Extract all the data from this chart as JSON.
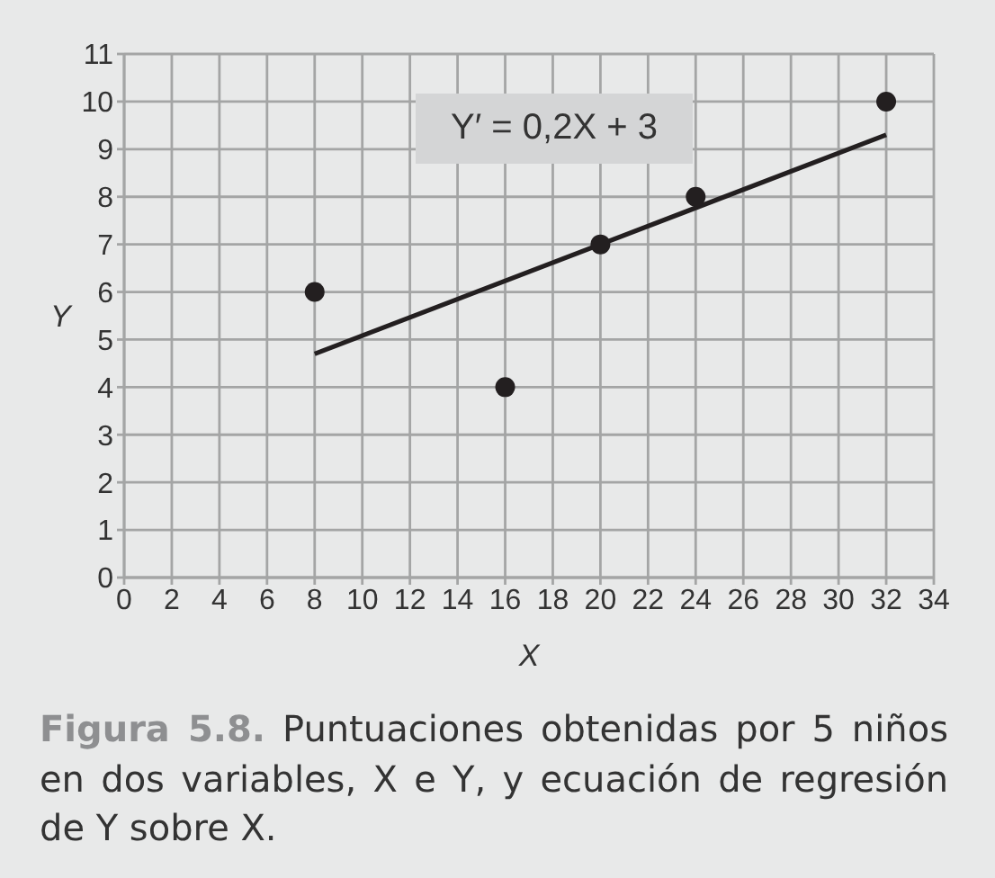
{
  "chart_data": {
    "type": "scatter",
    "xlabel": "X",
    "ylabel": "Y",
    "xlim": [
      0,
      34
    ],
    "xticks": [
      0,
      2,
      4,
      6,
      8,
      10,
      12,
      14,
      16,
      18,
      20,
      22,
      24,
      26,
      28,
      30,
      32,
      34
    ],
    "ylim": [
      0,
      11
    ],
    "yticks": [
      0,
      1,
      2,
      3,
      4,
      5,
      6,
      7,
      8,
      9,
      10,
      11
    ],
    "grid": true,
    "series": [
      {
        "x": [
          8,
          16,
          20,
          24,
          32
        ],
        "values": [
          6,
          4,
          7,
          8,
          10
        ],
        "color": "#231f20",
        "marker": "circle"
      },
      {
        "type": "line",
        "name": "Y′ = 0,2X + 3",
        "x": [
          8,
          32
        ],
        "values": [
          4.7,
          9.3
        ],
        "color": "#231f20",
        "marker": "none",
        "line_style": "solid"
      }
    ],
    "annotations": [
      "Figura 5.8. Puntuaciones obtenidas por 5 niños en dos variables, X e Y, y ecuación de regresión de Y sobre X."
    ]
  }
}
